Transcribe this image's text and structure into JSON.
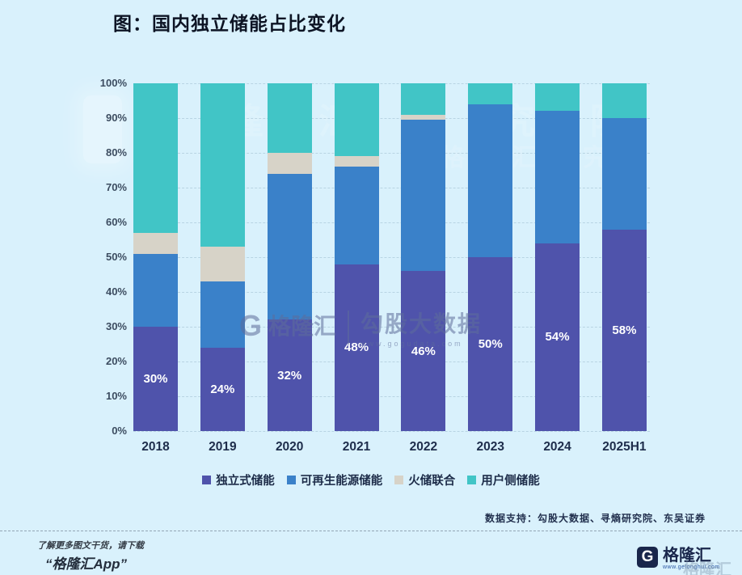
{
  "title": "图：国内独立储能占比变化",
  "chart_data": {
    "type": "bar",
    "stacked": true,
    "unit": "%",
    "title": "图：国内独立储能占比变化",
    "categories": [
      "2018",
      "2019",
      "2020",
      "2021",
      "2022",
      "2023",
      "2024",
      "2025H1"
    ],
    "series": [
      {
        "name": "独立式储能",
        "color": "#4f53ab",
        "values": [
          30,
          24,
          32,
          48,
          46,
          50,
          54,
          58
        ]
      },
      {
        "name": "可再生能源储能",
        "color": "#3a81c9",
        "values": [
          21,
          19,
          42,
          28,
          43.5,
          44,
          38,
          32
        ]
      },
      {
        "name": "火储联合",
        "color": "#d7d3c8",
        "values": [
          6,
          10,
          6,
          3,
          1.5,
          0,
          0,
          0
        ]
      },
      {
        "name": "用户侧储能",
        "color": "#41c5c6",
        "values": [
          43,
          47,
          20,
          21,
          9,
          6,
          8,
          10
        ]
      }
    ],
    "bar_labels": [
      "30%",
      "24%",
      "32%",
      "48%",
      "46%",
      "50%",
      "54%",
      "58%"
    ],
    "y_ticks": [
      "100%",
      "90%",
      "80%",
      "70%",
      "60%",
      "50%",
      "40%",
      "30%",
      "20%",
      "10%",
      "0%"
    ],
    "ylim": [
      0,
      100
    ],
    "grid": true,
    "legend_position": "bottom"
  },
  "watermarks": {
    "research_institute": "格隆汇研究院",
    "brand": "格隆汇",
    "brand_g": "G",
    "data_brand": "勾股大数据",
    "data_url": "www.gogudata.com"
  },
  "footer": {
    "data_support": "数据支持：勾股大数据、寻熵研究院、东吴证券",
    "promo_line1": "了解更多图文干货，请下载",
    "promo_line2": "“格隆汇App”",
    "logo_g": "G",
    "logo_text": "格隆汇",
    "logo_url": "www.gelonghui.com",
    "logo_echo": "格隆汇"
  }
}
